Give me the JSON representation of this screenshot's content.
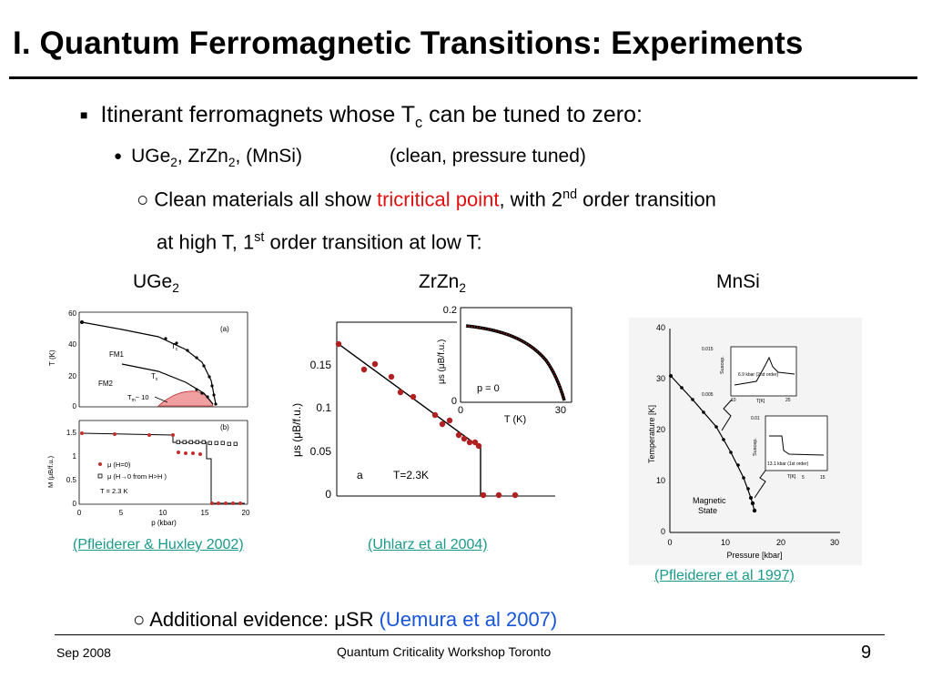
{
  "slide": {
    "title": "I. Quantum Ferromagnetic Transitions: Experiments",
    "bullet1": {
      "marker": "■",
      "pre": "Itinerant ferromagnets whose T",
      "sub": "c",
      "post": " can be tuned to zero:"
    },
    "bullet2": {
      "marker": "●",
      "t1": "UGe",
      "s1": "2",
      "t2": ", ZrZn",
      "s2": "2",
      "t3": ", (MnSi)",
      "note": "(clean, pressure tuned)"
    },
    "bullet3": {
      "marker": "○",
      "pre": "Clean materials all show ",
      "highlight": "tricritical point",
      "mid": ", with 2",
      "sup1": "nd",
      "post": " order transition"
    },
    "bullet3b": {
      "pre": "at high T, 1",
      "sup": "st",
      "post": " order transition at low T:"
    },
    "labels": {
      "uge": "UGe",
      "uge_sub": "2",
      "zrzn": "ZrZn",
      "zrzn_sub": "2",
      "mnsi": "MnSi"
    },
    "citations": {
      "c1": "(Pfleiderer & Huxley 2002)",
      "c2": "(Uhlarz et al 2004)",
      "c3": "(Pfleiderer et al 1997)"
    },
    "bullet4": {
      "marker": "○",
      "pre": "Additional evidence: μSR ",
      "ref": "(Uemura et al 2007)"
    },
    "footer": {
      "left": "Sep 2008",
      "center": "Quantum Criticality Workshop Toronto",
      "page": "9"
    }
  },
  "figures": {
    "uge": {
      "top_yticks": [
        "60",
        "40",
        "20",
        "0"
      ],
      "top_ylabel": "T (K)",
      "panel_a": "(a)",
      "tc": "T",
      "tc_sub": "c",
      "tx": "T",
      "tx_sub": "x",
      "fm1": "FM1",
      "fm2": "FM2",
      "tm": "T",
      "tm_sub": "m",
      "tm_post": "~ 10",
      "bot_yticks": [
        "1.5",
        "1",
        "0.5",
        "0"
      ],
      "bot_ylabel": "M (μB/f.u.)",
      "panel_b": "(b)",
      "leg1": "μ  (H=0)",
      "leg2": "μ  (H→0 from H>H )",
      "temp": "T = 2.3 K",
      "xticks": [
        "0",
        "5",
        "10",
        "15",
        "20"
      ],
      "xlabel": "p (kbar)"
    },
    "zrzn": {
      "yticks": [
        "0.15",
        "0.1",
        "0.05",
        "0"
      ],
      "ylabel": "μs (μB/f.u.)",
      "a": "a",
      "temp": "T=2.3K",
      "inset_yticks": [
        "0.2",
        "0"
      ],
      "inset_ylabel": "μs (μB/f.u.)",
      "inset_p": "p = 0",
      "inset_xticks": [
        "0",
        "30"
      ],
      "inset_xlabel": "T (K)"
    },
    "mnsi": {
      "yticks": [
        "40",
        "30",
        "20",
        "10",
        "0"
      ],
      "ylabel": "Temperature [K]",
      "xticks": [
        "0",
        "10",
        "20",
        "30"
      ],
      "xlabel": "Pressure [kbar]",
      "magnetic": "Magnetic",
      "state": "State",
      "in1_label": "6.9 kbar (2nd order)",
      "in1_y": "Suscep.",
      "in1_x": "T[K]",
      "in1_vals": [
        "0.015",
        "0.005",
        "10",
        "25"
      ],
      "in2_label": "13.1 kbar (1st order)",
      "in2_y": "Suscep.",
      "in2_x": "T[K]",
      "in2_vals": [
        "0.01",
        "5",
        "15"
      ]
    }
  }
}
